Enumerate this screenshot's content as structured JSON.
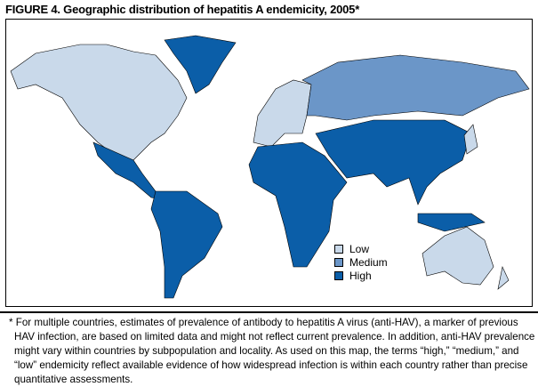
{
  "title": "FIGURE 4. Geographic distribution of hepatitis A endemicity, 2005*",
  "legend": [
    {
      "label": "Low",
      "color": "#c9d9ea"
    },
    {
      "label": "Medium",
      "color": "#6b96c8"
    },
    {
      "label": "High",
      "color": "#0b5ea8"
    }
  ],
  "regions": {
    "north_america": "Low",
    "greenland": "High",
    "mexico_central_america": "High",
    "south_america": "High",
    "europe": "Low",
    "russia_eastern_europe": "Medium",
    "africa": "High",
    "asia": "High",
    "japan": "Low",
    "southeast_asia_islands": "High",
    "australia": "Low",
    "new_zealand": "Low"
  },
  "footnote": "* For multiple countries, estimates of prevalence of antibody to hepatitis A virus (anti-HAV), a marker of previous HAV infection, are based on limited data and might not reflect current prevalence. In addition, anti-HAV prevalence might vary within countries by subpopulation and locality. As used on this map, the terms “high,” “medium,” and “low” endemicity reflect available evidence of how widespread infection is within each country rather than precise quantitative assessments."
}
